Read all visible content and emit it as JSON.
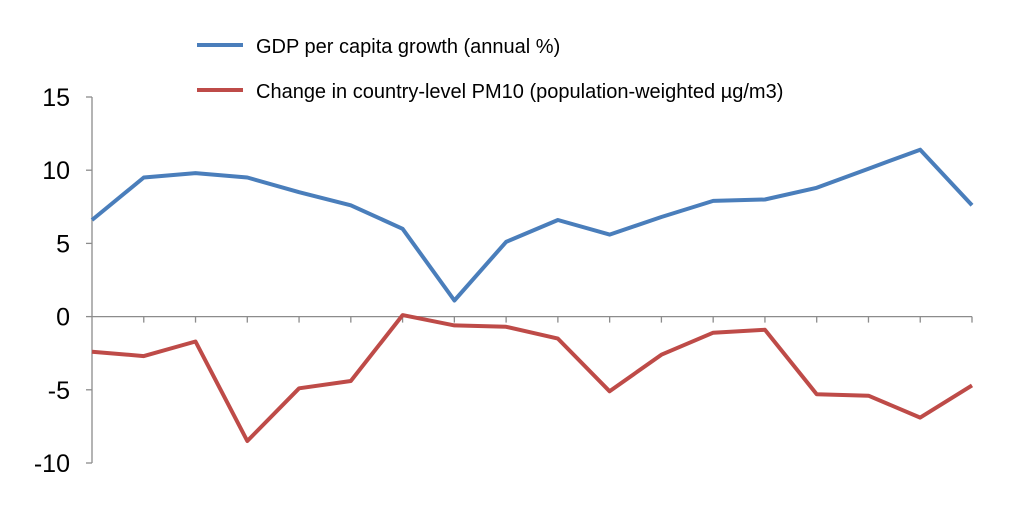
{
  "chart_data": {
    "type": "line",
    "title": "",
    "xlabel": "",
    "ylabel": "",
    "x_categories": 18,
    "ylim": [
      -10,
      15
    ],
    "yticks": [
      15,
      10,
      5,
      0,
      -5,
      -10
    ],
    "ytick_labels": [
      "15",
      "10",
      "5",
      "0",
      "-5",
      "-10"
    ],
    "grid": false,
    "legend_position": "top",
    "series": [
      {
        "name": "GDP per capita growth (annual %)",
        "color": "#4a7ebb",
        "values": [
          6.6,
          9.5,
          9.8,
          9.5,
          8.5,
          7.6,
          6.0,
          1.1,
          5.1,
          6.6,
          5.6,
          6.8,
          7.9,
          8.0,
          8.8,
          10.1,
          11.4,
          7.6
        ]
      },
      {
        "name": "Change in country-level PM10 (population-weighted µg/m3)",
        "color": "#be4b48",
        "values": [
          -2.4,
          -2.7,
          -1.7,
          -8.5,
          -4.9,
          -4.4,
          0.1,
          -0.6,
          -0.7,
          -1.5,
          -5.1,
          -2.6,
          -1.1,
          -0.9,
          -5.3,
          -5.4,
          -6.9,
          -4.7
        ]
      }
    ]
  }
}
